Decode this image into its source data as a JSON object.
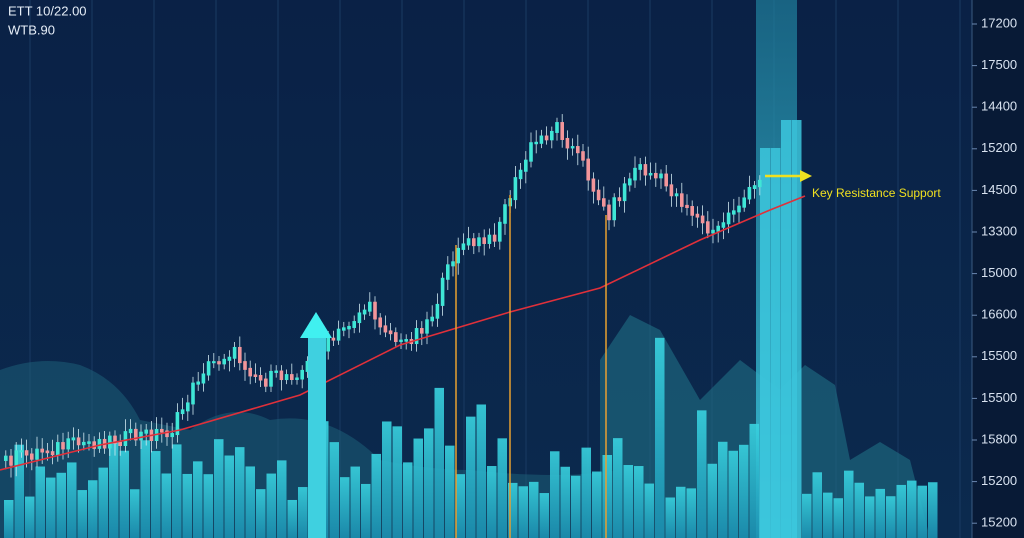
{
  "header": {
    "line1": "ETT 10/22.00",
    "line2": "WTB.90"
  },
  "price_axis_labels": [
    "17200",
    "17500",
    "14400",
    "15200",
    "14500",
    "13300",
    "15000",
    "16600",
    "15500",
    "15500",
    "15800",
    "15200",
    "15200"
  ],
  "annotation": "Key Resistance Support"
}
